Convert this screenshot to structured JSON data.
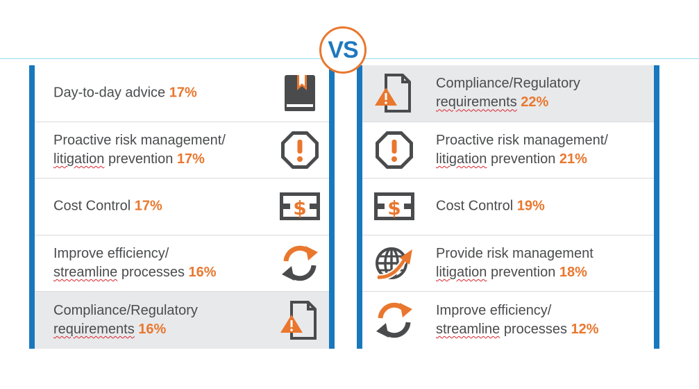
{
  "badge": "VS",
  "left": {
    "rows": [
      {
        "label": "Day-to-day advice",
        "pct": "17%",
        "icon": "book-icon"
      },
      {
        "label1": "Proactive risk management/",
        "label2": "litigation",
        "label3": "prevention",
        "pct": "17%",
        "icon": "alert-octagon-icon"
      },
      {
        "label": "Cost Control",
        "pct": "17%",
        "icon": "dollar-bill-icon"
      },
      {
        "label1": "Improve efficiency/",
        "label2": "streamline",
        "label3": "processes",
        "pct": "16%",
        "icon": "refresh-arrows-icon"
      },
      {
        "label1": "Compliance/Regulatory",
        "label2": "requirements",
        "pct": "16%",
        "icon": "warning-document-icon"
      }
    ]
  },
  "right": {
    "rows": [
      {
        "label1": "Compliance/Regulatory",
        "label2": "requirements",
        "pct": "22%",
        "icon": "warning-document-icon"
      },
      {
        "label1": "Proactive risk management/",
        "label2": "litigation",
        "label3": "prevention",
        "pct": "21%",
        "icon": "alert-octagon-icon"
      },
      {
        "label": "Cost Control",
        "pct": "19%",
        "icon": "dollar-bill-icon"
      },
      {
        "label1": "Provide risk management",
        "label2": "litigation",
        "label3": "prevention",
        "pct": "18%",
        "icon": "globe-arrow-icon"
      },
      {
        "label1": "Improve efficiency/",
        "label2": "streamline",
        "label3": "processes",
        "pct": "12%",
        "icon": "refresh-arrows-icon"
      }
    ]
  },
  "colors": {
    "accent": "#e9772e",
    "frame": "#1878be",
    "icon_gray": "#4a4b4d",
    "shaded_row": "#e8e9eb"
  }
}
